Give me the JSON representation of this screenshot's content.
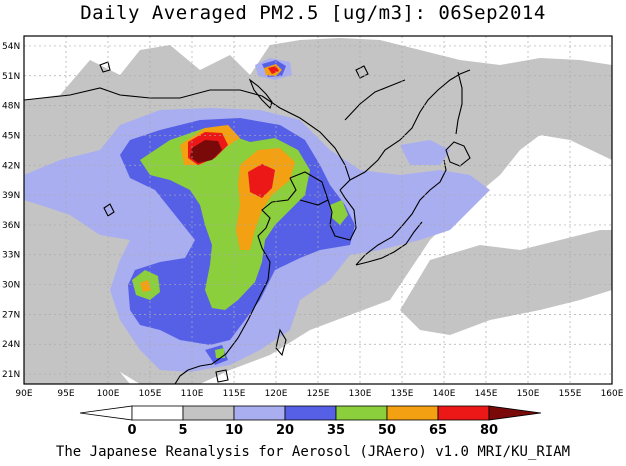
{
  "title": "Daily Averaged PM2.5 [ug/m3]: 06Sep2014",
  "footer": "The Japanese Reanalysis for Aerosol (JRAero) v1.0 MRI/KU_RIAM",
  "map": {
    "lon_labels": [
      "90E",
      "95E",
      "100E",
      "105E",
      "110E",
      "115E",
      "120E",
      "125E",
      "130E",
      "135E",
      "140E",
      "145E",
      "150E",
      "155E",
      "160E"
    ],
    "lat_labels": [
      "54N",
      "51N",
      "48N",
      "45N",
      "42N",
      "39N",
      "36N",
      "33N",
      "30N",
      "27N",
      "24N",
      "21N"
    ],
    "lon_range": [
      90,
      160
    ],
    "lat_range": [
      20,
      55
    ],
    "grid": true
  },
  "colorbar": {
    "levels": [
      "0",
      "5",
      "10",
      "20",
      "35",
      "50",
      "65",
      "80"
    ],
    "colors": [
      "#ffffff",
      "#ffffff",
      "#c4c4c4",
      "#a9aef0",
      "#5660e6",
      "#8ccf3c",
      "#f3a012",
      "#ec1818",
      "#7a0a0a"
    ]
  }
}
